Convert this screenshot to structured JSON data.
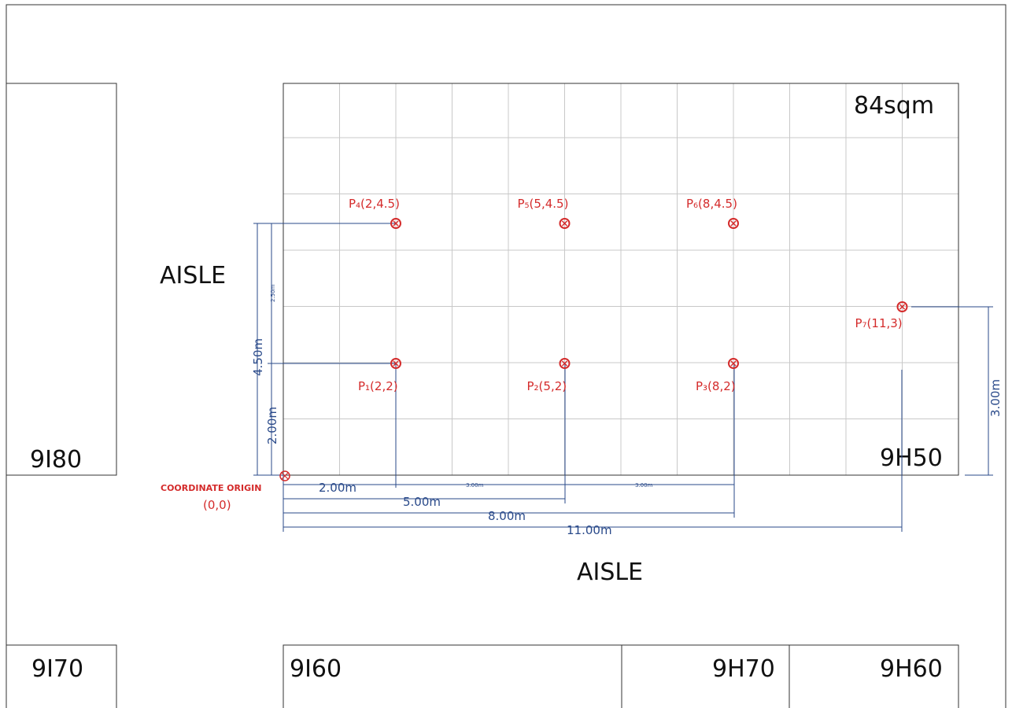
{
  "area_label": "84sqm",
  "aisle_left": "AISLE",
  "aisle_bottom": "AISLE",
  "booths": {
    "b9I80": "9I80",
    "b9H50": "9H50",
    "b9I70": "9I70",
    "b9I60": "9I60",
    "b9H70": "9H70",
    "b9H60": "9H60"
  },
  "origin": {
    "line1": "COORDINATE ORIGIN",
    "line2": "(0,0)"
  },
  "points": [
    {
      "id": "P1",
      "label": "P₁(2,2)",
      "x": 2,
      "y": 2
    },
    {
      "id": "P2",
      "label": "P₂(5,2)",
      "x": 5,
      "y": 2
    },
    {
      "id": "P3",
      "label": "P₃(8,2)",
      "x": 8,
      "y": 2
    },
    {
      "id": "P4",
      "label": "P₄(2,4.5)",
      "x": 2,
      "y": 4.5
    },
    {
      "id": "P5",
      "label": "P₅(5,4.5)",
      "x": 5,
      "y": 4.5
    },
    {
      "id": "P6",
      "label": "P₆(8,4.5)",
      "x": 8,
      "y": 4.5
    },
    {
      "id": "P7",
      "label": "P₇(11,3)",
      "x": 11,
      "y": 3
    }
  ],
  "dimensions": {
    "h_2": "2.00m",
    "h_3a": "3.00m",
    "h_3b": "3.00m",
    "h_5": "5.00m",
    "h_8": "8.00m",
    "h_11": "11.00m",
    "v_2": "2.00m",
    "v_250": "2.50m",
    "v_450": "4.50m",
    "v_3": "3.00m"
  }
}
